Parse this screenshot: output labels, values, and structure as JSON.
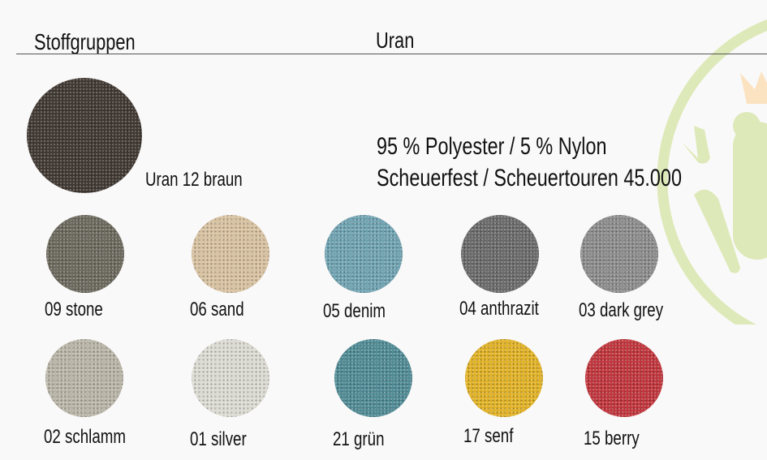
{
  "header": {
    "left": "Stoffgruppen",
    "center": "Uran"
  },
  "feature": {
    "name": "Uran 12 braun",
    "color": "#3f3731"
  },
  "specs": {
    "composition": "95 % Polyester / 5 % Nylon",
    "abrasion": "Scheuerfest / Scheuertouren 45.000"
  },
  "logo": {
    "ring_color": "#dde9b8",
    "crown_color": "#fbe3c2"
  },
  "swatches": [
    {
      "label": "09 stone",
      "color": "#6b685d"
    },
    {
      "label": "06 sand",
      "color": "#d8c2a0"
    },
    {
      "label": "05 denim",
      "color": "#6fa3b2"
    },
    {
      "label": "04 anthrazit",
      "color": "#6a6a6a"
    },
    {
      "label": "03 dark grey",
      "color": "#8c8c8c"
    },
    {
      "label": "02 schlamm",
      "color": "#b9b5a7"
    },
    {
      "label": "01 silver",
      "color": "#dcdbd3"
    },
    {
      "label": "21 grün",
      "color": "#4f8b95"
    },
    {
      "label": "17 senf",
      "color": "#e2b224"
    },
    {
      "label": "15 berry",
      "color": "#c1343b"
    }
  ]
}
